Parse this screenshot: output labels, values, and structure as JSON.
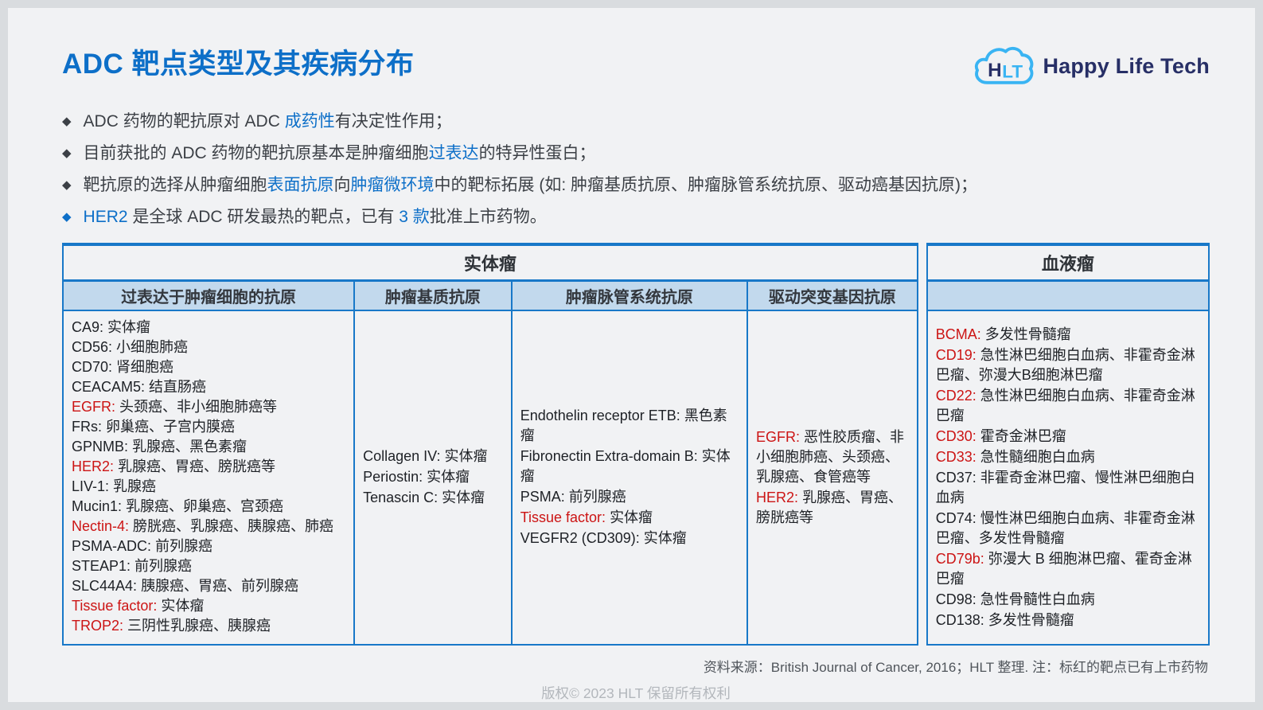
{
  "title": "ADC 靶点类型及其疾病分布",
  "logo": {
    "wordmark": "Happy Life Tech",
    "monogram_h": "H",
    "monogram_lt": "LT"
  },
  "icons": {
    "bullet": "◆"
  },
  "colors": {
    "accent_blue": "#0d6fc8",
    "highlight_red": "#cc1414",
    "table_border_blue": "#1878c8",
    "table_header_fill": "#c2d9ed",
    "logo_cloud_blue": "#39b4f3",
    "logo_navy": "#272f66"
  },
  "bullets": [
    {
      "accent": false,
      "segments": [
        {
          "t": "ADC 药物的靶抗原对 ADC ",
          "hl": false
        },
        {
          "t": "成药性",
          "hl": true
        },
        {
          "t": "有决定性作用；",
          "hl": false
        }
      ]
    },
    {
      "accent": false,
      "segments": [
        {
          "t": "目前获批的 ADC 药物的靶抗原基本是肿瘤细胞",
          "hl": false
        },
        {
          "t": "过表达",
          "hl": true
        },
        {
          "t": "的特异性蛋白；",
          "hl": false
        }
      ]
    },
    {
      "accent": false,
      "segments": [
        {
          "t": "靶抗原的选择从肿瘤细胞",
          "hl": false
        },
        {
          "t": "表面抗原",
          "hl": true
        },
        {
          "t": "向",
          "hl": false
        },
        {
          "t": "肿瘤微环境",
          "hl": true
        },
        {
          "t": "中的靶标拓展 (如: 肿瘤基质抗原、肿瘤脉管系统抗原、驱动癌基因抗原)；",
          "hl": false
        }
      ]
    },
    {
      "accent": true,
      "segments": [
        {
          "t": "HER2",
          "hl": true
        },
        {
          "t": " 是全球 ADC 研发最热的靶点，已有 ",
          "hl": false
        },
        {
          "t": "3 款",
          "hl": true
        },
        {
          "t": "批准上市药物。",
          "hl": false
        }
      ]
    }
  ],
  "table": {
    "solid": {
      "title": "实体瘤",
      "columns": [
        {
          "header": "过表达于肿瘤细胞的抗原",
          "entries": [
            {
              "target": "CA9",
              "diseases": "实体瘤",
              "red": false
            },
            {
              "target": "CD56",
              "diseases": "小细胞肺癌",
              "red": false
            },
            {
              "target": "CD70",
              "diseases": "肾细胞癌",
              "red": false
            },
            {
              "target": "CEACAM5",
              "diseases": "结直肠癌",
              "red": false
            },
            {
              "target": "EGFR",
              "diseases": "头颈癌、非小细胞肺癌等",
              "red": true
            },
            {
              "target": "FRs",
              "diseases": "卵巢癌、子宫内膜癌",
              "red": false
            },
            {
              "target": "GPNMB",
              "diseases": "乳腺癌、黑色素瘤",
              "red": false
            },
            {
              "target": "HER2",
              "diseases": "乳腺癌、胃癌、膀胱癌等",
              "red": true
            },
            {
              "target": "LIV-1",
              "diseases": "乳腺癌",
              "red": false
            },
            {
              "target": "Mucin1",
              "diseases": "乳腺癌、卵巢癌、宫颈癌",
              "red": false
            },
            {
              "target": "Nectin-4",
              "diseases": "膀胱癌、乳腺癌、胰腺癌、肺癌",
              "red": true
            },
            {
              "target": "PSMA-ADC",
              "diseases": "前列腺癌",
              "red": false
            },
            {
              "target": "STEAP1",
              "diseases": "前列腺癌",
              "red": false
            },
            {
              "target": "SLC44A4",
              "diseases": "胰腺癌、胃癌、前列腺癌",
              "red": false
            },
            {
              "target": "Tissue factor",
              "diseases": "实体瘤",
              "red": true
            },
            {
              "target": "TROP2",
              "diseases": "三阴性乳腺癌、胰腺癌",
              "red": true
            }
          ]
        },
        {
          "header": "肿瘤基质抗原",
          "entries": [
            {
              "target": "Collagen IV",
              "diseases": "实体瘤",
              "red": false
            },
            {
              "target": "Periostin",
              "diseases": "实体瘤",
              "red": false
            },
            {
              "target": "Tenascin C",
              "diseases": "实体瘤",
              "red": false
            }
          ]
        },
        {
          "header": "肿瘤脉管系统抗原",
          "entries": [
            {
              "target": "Endothelin receptor ETB",
              "diseases": "黑色素瘤",
              "red": false
            },
            {
              "target": "Fibronectin Extra-domain B",
              "diseases": "实体瘤",
              "red": false
            },
            {
              "target": "PSMA",
              "diseases": "前列腺癌",
              "red": false
            },
            {
              "target": "Tissue factor",
              "diseases": "实体瘤",
              "red": true
            },
            {
              "target": "VEGFR2 (CD309)",
              "diseases": "实体瘤",
              "red": false
            }
          ]
        },
        {
          "header": "驱动突变基因抗原",
          "entries": [
            {
              "target": "EGFR",
              "diseases": "恶性胶质瘤、非小细胞肺癌、头颈癌、乳腺癌、食管癌等",
              "red": true
            },
            {
              "target": "HER2",
              "diseases": "乳腺癌、胃癌、膀胱癌等",
              "red": true
            }
          ]
        }
      ]
    },
    "blood": {
      "title": "血液瘤",
      "entries": [
        {
          "target": "BCMA",
          "diseases": "多发性骨髓瘤",
          "red": true
        },
        {
          "target": "CD19",
          "diseases": "急性淋巴细胞白血病、非霍奇金淋巴瘤、弥漫大B细胞淋巴瘤",
          "red": true
        },
        {
          "target": "CD22",
          "diseases": "急性淋巴细胞白血病、非霍奇金淋巴瘤",
          "red": true
        },
        {
          "target": "CD30",
          "diseases": "霍奇金淋巴瘤",
          "red": true
        },
        {
          "target": "CD33",
          "diseases": "急性髓细胞白血病",
          "red": true
        },
        {
          "target": "CD37",
          "diseases": "非霍奇金淋巴瘤、慢性淋巴细胞白血病",
          "red": false
        },
        {
          "target": "CD74",
          "diseases": "慢性淋巴细胞白血病、非霍奇金淋巴瘤、多发性骨髓瘤",
          "red": false
        },
        {
          "target": "CD79b",
          "diseases": "弥漫大 B 细胞淋巴瘤、霍奇金淋巴瘤",
          "red": true
        },
        {
          "target": "CD98",
          "diseases": "急性骨髓性白血病",
          "red": false
        },
        {
          "target": "CD138",
          "diseases": "多发性骨髓瘤",
          "red": false
        }
      ]
    }
  },
  "footer": {
    "source": "资料来源：British Journal of Cancer, 2016；HLT 整理.  注：标红的靶点已有上市药物",
    "copyright": "版权© 2023 HLT 保留所有权利"
  }
}
